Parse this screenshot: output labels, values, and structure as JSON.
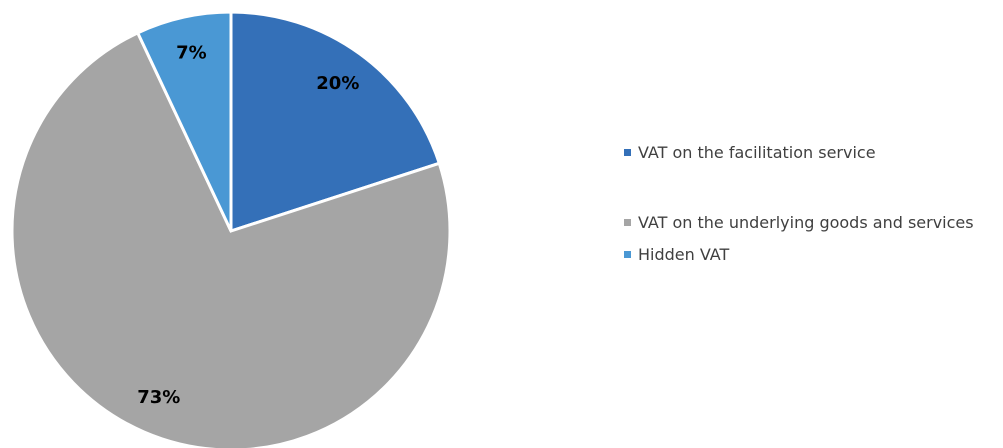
{
  "chart_data": {
    "type": "pie",
    "categories": [
      "VAT on the facilitation service",
      "VAT on the underlying goods and services",
      "Hidden VAT"
    ],
    "values": [
      20,
      73,
      7
    ],
    "value_labels": [
      "20%",
      "73%",
      "7%"
    ],
    "colors": [
      "#3470b8",
      "#a5a5a5",
      "#4a98d4"
    ],
    "legend": "right"
  }
}
